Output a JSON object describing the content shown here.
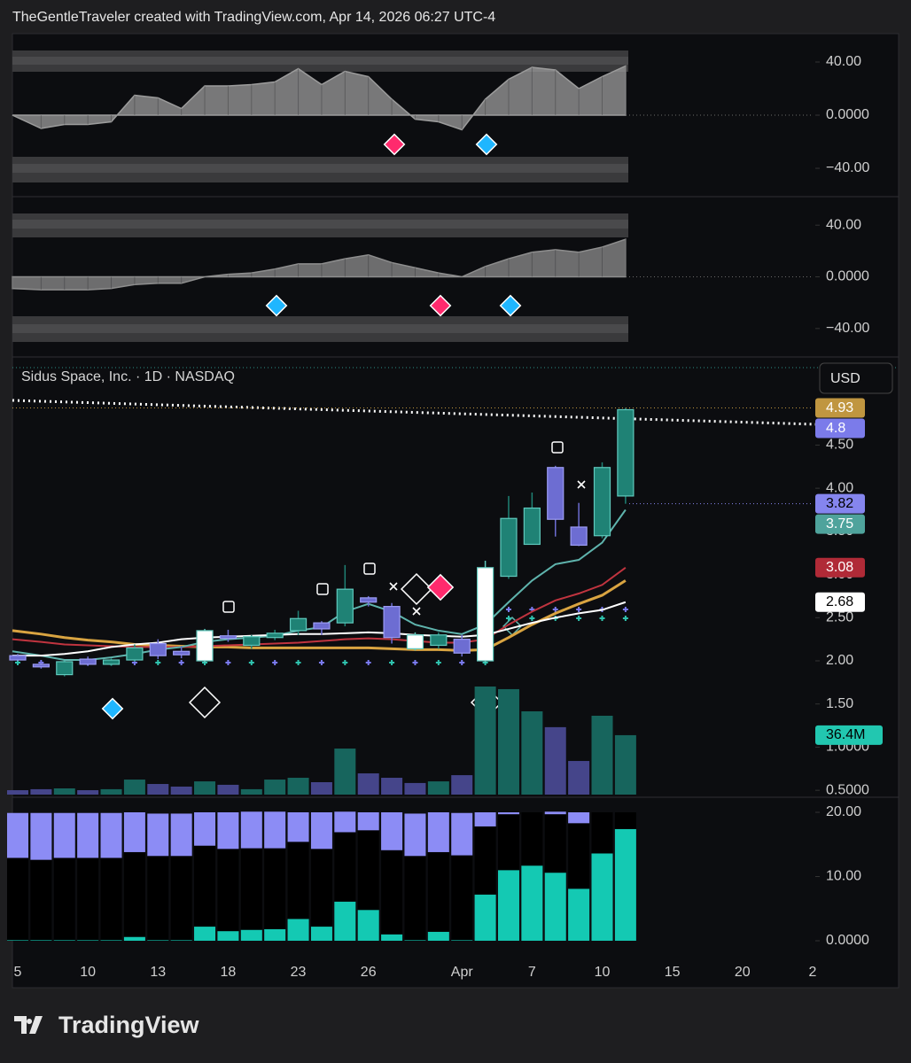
{
  "header": {
    "credit": "TheGentleTraveler created with TradingView.com, Apr 14, 2026 06:27 UTC-4"
  },
  "footer": {
    "brand": "TradingView"
  },
  "chart_data": [
    {
      "type": "area",
      "color": "#9c9c9c",
      "ylim": [
        -60,
        60
      ],
      "yticks": [
        {
          "value": 40,
          "label": "40.00"
        },
        {
          "value": 0,
          "label": "0.0000"
        },
        {
          "value": -40,
          "label": "−40.00"
        }
      ],
      "values": [
        0,
        -10,
        -7,
        -7,
        -5,
        15,
        13,
        5,
        22,
        22,
        23,
        25,
        35,
        23,
        33,
        29,
        12,
        -3,
        -5,
        -11,
        12,
        27,
        36,
        34,
        20,
        29,
        37,
        null,
        null,
        null,
        null,
        null,
        null,
        null,
        null
      ]
    },
    {
      "type": "area",
      "color": "#8e8e8e",
      "ylim": [
        -60,
        60
      ],
      "yticks": [
        {
          "value": 40,
          "label": "40.00"
        },
        {
          "value": 0,
          "label": "0.0000"
        },
        {
          "value": -40,
          "label": "−40.00"
        }
      ],
      "values": [
        -9,
        -10,
        -10,
        -10,
        -9,
        -6,
        -5,
        -5,
        0,
        2,
        3,
        6,
        10,
        10,
        14,
        17,
        11,
        7,
        3,
        0,
        8,
        14,
        19,
        21,
        19,
        23,
        29,
        null,
        null,
        null,
        null,
        null,
        null,
        null,
        null
      ]
    },
    {
      "type": "candlestick",
      "title": "Sidus Space, Inc. · 1D · NASDAQ",
      "currency": "USD",
      "ylim": [
        0.44,
        5.5
      ],
      "yticks": [
        {
          "value": 4.5,
          "label": "4.50"
        },
        {
          "value": 4,
          "label": "4.00"
        },
        {
          "value": 3.5,
          "label": "3.50"
        },
        {
          "value": 3,
          "label": "3.00"
        },
        {
          "value": 2.5,
          "label": "2.50"
        },
        {
          "value": 2,
          "label": "2.00"
        },
        {
          "value": 1.5,
          "label": "1.50"
        },
        {
          "value": 1,
          "label": "1.0000"
        },
        {
          "value": 0.5,
          "label": "0.5000"
        }
      ],
      "open": [
        2.06,
        1.96,
        1.84,
        2.02,
        1.96,
        2.01,
        2.2,
        2.11,
        2.0,
        2.29,
        2.18,
        2.27,
        2.35,
        2.44,
        2.44,
        2.73,
        2.63,
        2.14,
        2.18,
        2.25,
        2.0,
        2.98,
        3.35,
        4.24,
        3.55,
        3.45,
        3.91,
        null,
        null,
        null,
        null,
        null,
        null,
        null,
        null
      ],
      "high": [
        2.08,
        1.98,
        2.0,
        2.05,
        2.03,
        2.19,
        2.25,
        2.17,
        2.37,
        2.36,
        2.3,
        2.36,
        2.58,
        2.46,
        3.11,
        2.75,
        2.67,
        2.33,
        2.33,
        2.3,
        3.16,
        3.91,
        3.95,
        4.26,
        3.83,
        4.3,
        4.93,
        null,
        null,
        null,
        null,
        null,
        null,
        null,
        null
      ],
      "low": [
        2.0,
        1.91,
        1.82,
        1.94,
        1.94,
        1.99,
        2.02,
        2.03,
        1.98,
        2.22,
        2.14,
        2.24,
        2.3,
        2.3,
        2.4,
        2.63,
        2.2,
        2.12,
        2.14,
        2.05,
        1.98,
        2.95,
        3.35,
        3.44,
        3.33,
        3.42,
        3.82,
        null,
        null,
        null,
        null,
        null,
        null,
        null,
        null
      ],
      "close": [
        2.01,
        1.93,
        1.99,
        1.96,
        2.01,
        2.15,
        2.06,
        2.07,
        2.35,
        2.26,
        2.28,
        2.32,
        2.49,
        2.37,
        2.83,
        2.68,
        2.27,
        2.3,
        2.3,
        2.09,
        3.08,
        3.65,
        3.77,
        3.64,
        3.34,
        4.24,
        4.91,
        null,
        null,
        null,
        null,
        null,
        null,
        null,
        null
      ],
      "candle_colors": [
        "#6d6dd2",
        "#6d6dd2",
        "#1f8275",
        "#6d6dd2",
        "#1f8275",
        "#1f8275",
        "#6d6dd2",
        "#6d6dd2",
        "#ffffff",
        "#6d6dd2",
        "#1f8275",
        "#1f8275",
        "#1f8275",
        "#6d6dd2",
        "#1f8275",
        "#6d6dd2",
        "#6d6dd2",
        "#ffffff",
        "#1f8275",
        "#6d6dd2",
        "#ffffff",
        "#1f8275",
        "#1f8275",
        "#6d6dd2",
        "#6d6dd2",
        "#1f8275",
        "#1f8275",
        null,
        null,
        null,
        null,
        null,
        null,
        null,
        null
      ],
      "series": [
        {
          "color": "#d9a441",
          "values": [
            2.35,
            2.31,
            2.27,
            2.24,
            2.22,
            2.19,
            2.18,
            2.17,
            2.16,
            2.16,
            2.15,
            2.15,
            2.15,
            2.15,
            2.15,
            2.15,
            2.14,
            2.13,
            2.13,
            2.12,
            2.13,
            2.27,
            2.42,
            2.55,
            2.66,
            2.76,
            2.93,
            null,
            null,
            null,
            null,
            null,
            null,
            null,
            null
          ]
        },
        {
          "color": "#c0343f",
          "values": [
            2.25,
            2.22,
            2.19,
            2.18,
            2.17,
            2.16,
            2.16,
            2.16,
            2.17,
            2.18,
            2.19,
            2.2,
            2.21,
            2.23,
            2.25,
            2.26,
            2.25,
            2.23,
            2.21,
            2.21,
            2.25,
            2.42,
            2.57,
            2.7,
            2.78,
            2.88,
            3.08,
            null,
            null,
            null,
            null,
            null,
            null,
            null,
            null
          ]
        },
        {
          "color": "#5fb4ad",
          "values": [
            2.11,
            2.06,
            2.01,
            2.01,
            2.04,
            2.08,
            2.13,
            2.16,
            2.22,
            2.25,
            2.27,
            2.29,
            2.35,
            2.39,
            2.57,
            2.66,
            2.57,
            2.42,
            2.35,
            2.31,
            2.42,
            2.68,
            2.93,
            3.12,
            3.17,
            3.37,
            3.75,
            null,
            null,
            null,
            null,
            null,
            null,
            null,
            null
          ]
        },
        {
          "color": "#ffffff",
          "values": [
            2.06,
            2.06,
            2.08,
            2.11,
            2.16,
            2.19,
            2.21,
            2.25,
            2.27,
            2.28,
            2.29,
            2.3,
            2.31,
            2.31,
            2.32,
            2.33,
            2.32,
            2.3,
            2.29,
            2.28,
            2.3,
            2.37,
            2.44,
            2.5,
            2.55,
            2.59,
            2.68,
            null,
            null,
            null,
            null,
            null,
            null,
            null,
            null
          ]
        }
      ],
      "price_labels": [
        {
          "value": 4.93,
          "color": "#c09640"
        },
        {
          "value": 4.8,
          "color": "#7b7bea"
        },
        {
          "value": 3.82,
          "color": "#8585ee"
        },
        {
          "value": 3.75,
          "color": "#4fa39c"
        },
        {
          "value": 3.08,
          "color": "#b02a37"
        },
        {
          "value": 2.68,
          "color": "#ffffff"
        }
      ],
      "volume": [
        2700000,
        3300000,
        3800000,
        2700000,
        3300000,
        9200000,
        6500000,
        4900000,
        8100000,
        6000000,
        3300000,
        9200000,
        10300000,
        7600000,
        28200000,
        13000000,
        10300000,
        7100000,
        8100000,
        11900000,
        66200000,
        64600000,
        51000000,
        41300000,
        20600000,
        48300000,
        36400000,
        null,
        null,
        null,
        null,
        null,
        null,
        null,
        null
      ],
      "volume_colors": [
        "#45458a",
        "#45458a",
        "#17655d",
        "#45458a",
        "#17655d",
        "#17655d",
        "#45458a",
        "#45458a",
        "#17655d",
        "#45458a",
        "#17655d",
        "#17655d",
        "#17655d",
        "#45458a",
        "#17655d",
        "#45458a",
        "#45458a",
        "#45458a",
        "#17655d",
        "#45458a",
        "#17655d",
        "#17655d",
        "#17655d",
        "#45458a",
        "#45458a",
        "#17655d",
        "#17655d",
        null,
        null,
        null,
        null,
        null,
        null,
        null,
        null
      ],
      "volume_label": {
        "value": 36400000,
        "label": "36.4M",
        "color": "#22c7b0"
      }
    },
    {
      "type": "stacked_bar",
      "ylim": [
        -2.76,
        22.07
      ],
      "yticks": [
        {
          "value": 20,
          "label": "20.00"
        },
        {
          "value": 10,
          "label": "10.00"
        },
        {
          "value": 0,
          "label": "0.0000"
        }
      ],
      "categories": [
        "5",
        null,
        null,
        "10",
        null,
        null,
        "13",
        null,
        null,
        "18",
        null,
        null,
        "23",
        null,
        null,
        "26",
        null,
        null,
        null,
        "Apr",
        null,
        null,
        "7",
        null,
        null,
        "10",
        null,
        null,
        "15",
        null,
        null,
        "20",
        null,
        null,
        "2"
      ],
      "series": [
        {
          "color": "#14c9b3",
          "values": [
            0.1,
            0.1,
            0.1,
            0.1,
            0.1,
            0.6,
            0.1,
            0.1,
            2.2,
            1.5,
            1.7,
            1.8,
            3.4,
            2.2,
            6.1,
            4.8,
            1.0,
            0.1,
            1.4,
            0.1,
            7.2,
            11.0,
            11.7,
            10.6,
            8.1,
            13.6,
            17.4,
            null,
            null,
            null,
            null,
            null,
            null,
            null,
            null
          ]
        },
        {
          "color": "#000000",
          "values": [
            12.8,
            12.5,
            12.8,
            12.8,
            12.8,
            13.2,
            13.1,
            13.1,
            12.6,
            12.8,
            12.7,
            12.6,
            12.0,
            12.1,
            10.8,
            12.4,
            13.1,
            13.1,
            12.4,
            13.2,
            10.6,
            8.7,
            8.3,
            9.1,
            10.2,
            6.4,
            2.6,
            null,
            null,
            null,
            null,
            null,
            null,
            null,
            null
          ]
        },
        {
          "color": "#8c8cf5",
          "values": [
            7.0,
            7.3,
            7.0,
            7.0,
            7.0,
            6.2,
            6.6,
            6.6,
            5.2,
            5.7,
            5.7,
            5.7,
            4.6,
            5.7,
            3.2,
            2.8,
            5.9,
            6.6,
            6.2,
            6.6,
            2.2,
            0.3,
            0,
            0.4,
            1.7,
            0,
            0,
            null,
            null,
            null,
            null,
            null,
            null,
            null,
            null
          ]
        }
      ]
    }
  ]
}
